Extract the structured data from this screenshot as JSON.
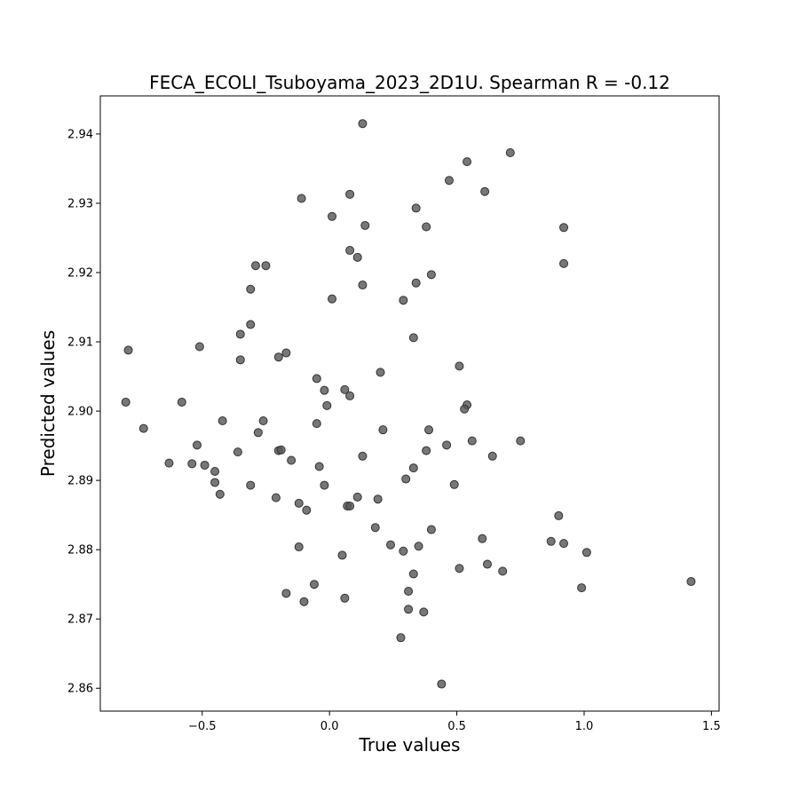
{
  "chart_data": {
    "type": "scatter",
    "title": "FECA_ECOLI_Tsuboyama_2023_2D1U. Spearman R = -0.12",
    "xlabel": "True values",
    "ylabel": "Predicted values",
    "xlim": [
      -0.9,
      1.53
    ],
    "ylim": [
      2.8567,
      2.9455
    ],
    "x_ticks": [
      -0.5,
      0.0,
      0.5,
      1.0,
      1.5
    ],
    "x_tick_labels": [
      "−0.5",
      "0.0",
      "0.5",
      "1.0",
      "1.5"
    ],
    "y_ticks": [
      2.86,
      2.87,
      2.88,
      2.89,
      2.9,
      2.91,
      2.92,
      2.93,
      2.94
    ],
    "y_tick_labels": [
      "2.86",
      "2.87",
      "2.88",
      "2.89",
      "2.90",
      "2.91",
      "2.92",
      "2.93",
      "2.94"
    ],
    "grid": false,
    "marker_color": "#555555",
    "marker_edge_color": "#333333",
    "points": [
      [
        0.13,
        2.9415
      ],
      [
        0.71,
        2.9373
      ],
      [
        0.54,
        2.936
      ],
      [
        0.47,
        2.9333
      ],
      [
        -0.11,
        2.9307
      ],
      [
        0.08,
        2.9313
      ],
      [
        0.61,
        2.9317
      ],
      [
        0.34,
        2.9293
      ],
      [
        0.01,
        2.9281
      ],
      [
        0.14,
        2.9268
      ],
      [
        0.38,
        2.9266
      ],
      [
        0.92,
        2.9265
      ],
      [
        0.08,
        2.9232
      ],
      [
        0.11,
        2.9222
      ],
      [
        0.92,
        2.9213
      ],
      [
        -0.29,
        2.921
      ],
      [
        -0.25,
        2.921
      ],
      [
        0.4,
        2.9197
      ],
      [
        0.34,
        2.9185
      ],
      [
        0.13,
        2.9182
      ],
      [
        -0.31,
        2.9176
      ],
      [
        0.01,
        2.9162
      ],
      [
        0.29,
        2.916
      ],
      [
        -0.31,
        2.9125
      ],
      [
        -0.35,
        2.9111
      ],
      [
        0.33,
        2.9106
      ],
      [
        -0.51,
        2.9093
      ],
      [
        -0.79,
        2.9088
      ],
      [
        -0.17,
        2.9084
      ],
      [
        -0.2,
        2.9078
      ],
      [
        -0.35,
        2.9074
      ],
      [
        0.51,
        2.9065
      ],
      [
        0.2,
        2.9056
      ],
      [
        -0.05,
        2.9047
      ],
      [
        -0.02,
        2.903
      ],
      [
        0.06,
        2.9031
      ],
      [
        0.08,
        2.9022
      ],
      [
        -0.8,
        2.9013
      ],
      [
        -0.58,
        2.9013
      ],
      [
        -0.01,
        2.9008
      ],
      [
        0.54,
        2.9009
      ],
      [
        0.53,
        2.9003
      ],
      [
        -0.42,
        2.8986
      ],
      [
        -0.26,
        2.8986
      ],
      [
        -0.05,
        2.8982
      ],
      [
        -0.73,
        2.8975
      ],
      [
        0.21,
        2.8973
      ],
      [
        0.39,
        2.8973
      ],
      [
        -0.28,
        2.8969
      ],
      [
        0.56,
        2.8957
      ],
      [
        0.75,
        2.8957
      ],
      [
        -0.52,
        2.8951
      ],
      [
        0.46,
        2.8951
      ],
      [
        -0.2,
        2.8943
      ],
      [
        -0.19,
        2.8944
      ],
      [
        -0.36,
        2.8941
      ],
      [
        0.38,
        2.8943
      ],
      [
        0.13,
        2.8935
      ],
      [
        0.64,
        2.8935
      ],
      [
        -0.15,
        2.8929
      ],
      [
        -0.63,
        2.8925
      ],
      [
        -0.54,
        2.8924
      ],
      [
        -0.49,
        2.8922
      ],
      [
        -0.04,
        2.892
      ],
      [
        0.33,
        2.8918
      ],
      [
        -0.45,
        2.8913
      ],
      [
        0.3,
        2.8902
      ],
      [
        -0.45,
        2.8897
      ],
      [
        -0.31,
        2.8893
      ],
      [
        -0.02,
        2.8893
      ],
      [
        0.49,
        2.8894
      ],
      [
        -0.43,
        2.888
      ],
      [
        -0.21,
        2.8875
      ],
      [
        0.11,
        2.8876
      ],
      [
        0.19,
        2.8873
      ],
      [
        -0.12,
        2.8867
      ],
      [
        0.07,
        2.8863
      ],
      [
        0.08,
        2.8863
      ],
      [
        -0.09,
        2.8857
      ],
      [
        0.9,
        2.8849
      ],
      [
        0.18,
        2.8832
      ],
      [
        0.4,
        2.8829
      ],
      [
        0.6,
        2.8816
      ],
      [
        0.87,
        2.8812
      ],
      [
        0.92,
        2.8809
      ],
      [
        0.24,
        2.8807
      ],
      [
        0.35,
        2.8805
      ],
      [
        -0.12,
        2.8804
      ],
      [
        0.29,
        2.8798
      ],
      [
        1.01,
        2.8796
      ],
      [
        0.05,
        2.8792
      ],
      [
        0.62,
        2.8779
      ],
      [
        0.51,
        2.8773
      ],
      [
        0.68,
        2.8769
      ],
      [
        0.33,
        2.8765
      ],
      [
        1.42,
        2.8754
      ],
      [
        -0.06,
        2.875
      ],
      [
        0.99,
        2.8745
      ],
      [
        0.31,
        2.874
      ],
      [
        -0.17,
        2.8737
      ],
      [
        0.06,
        2.873
      ],
      [
        -0.1,
        2.8725
      ],
      [
        0.31,
        2.8714
      ],
      [
        0.37,
        2.871
      ],
      [
        0.28,
        2.8673
      ],
      [
        0.44,
        2.8606
      ]
    ]
  }
}
